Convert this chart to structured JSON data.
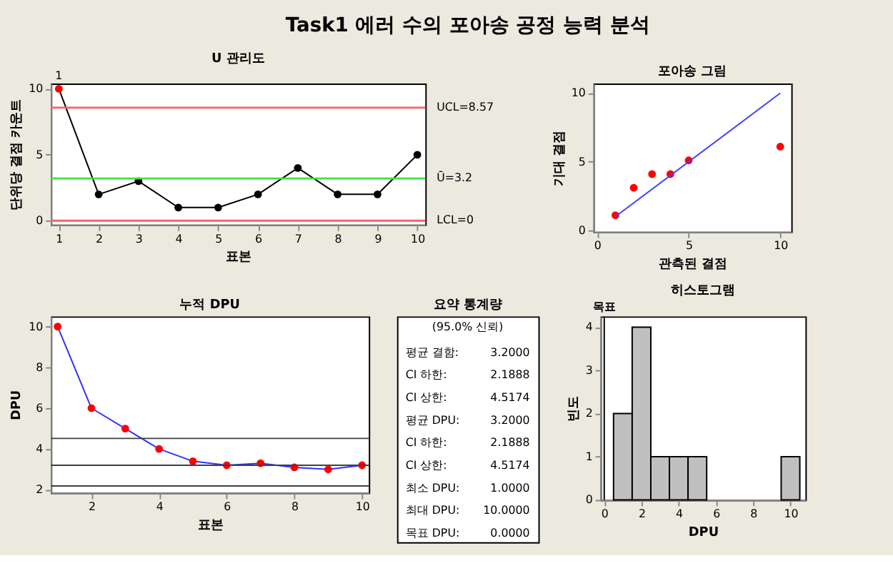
{
  "chart_data": [
    {
      "type": "other",
      "title": "Task1 에러 수의 포아송 공정 능력 분석"
    },
    {
      "type": "line",
      "title": "U 관리도",
      "xlabel": "표본",
      "ylabel": "단위당 결점 카운트",
      "x": [
        1,
        2,
        3,
        4,
        5,
        6,
        7,
        8,
        9,
        10
      ],
      "xlim": [
        0.8,
        10.2
      ],
      "xticks": [
        1,
        2,
        3,
        4,
        5,
        6,
        7,
        8,
        9,
        10
      ],
      "ylim": [
        -0.3,
        10.4
      ],
      "yticks": [
        0,
        5,
        10
      ],
      "marker": "circle",
      "grid": false,
      "series": [
        {
          "color": "#000000",
          "values": [
            10,
            2,
            3,
            1,
            1,
            2,
            4,
            2,
            2,
            5
          ],
          "colors": [
            "#ff0000",
            "#000000",
            "#000000",
            "#000000",
            "#000000",
            "#000000",
            "#000000",
            "#000000",
            "#000000",
            "#000000"
          ]
        }
      ],
      "ref_lines": [
        {
          "axis": "y",
          "value": 8.57,
          "label": "UCL=8.57",
          "color": "#ff6060"
        },
        {
          "axis": "y",
          "value": 3.2,
          "label": "Ū=3.2",
          "color": "#40e040"
        },
        {
          "axis": "y",
          "value": 0,
          "label": "LCL=0",
          "color": "#ff6060"
        }
      ],
      "annotations": [
        {
          "text": "1",
          "x": 1,
          "y": 10
        }
      ]
    },
    {
      "type": "scatter",
      "title": "포아송 그림",
      "xlabel": "관측된 결점",
      "ylabel": "기대 결점",
      "xlim": [
        -0.2,
        10.6
      ],
      "xticks": [
        0,
        5,
        10
      ],
      "ylim": [
        -0.1,
        10.7
      ],
      "yticks": [
        0,
        5,
        10
      ],
      "marker": "circle",
      "grid": false,
      "series": [
        {
          "x": [
            1,
            2,
            3,
            4,
            5,
            10
          ],
          "values": [
            1.1,
            3.1,
            4.1,
            4.1,
            5.1,
            6.1
          ],
          "color": "#ff0000"
        },
        {
          "type": "line",
          "marker": "none",
          "x": [
            1,
            10
          ],
          "values": [
            1,
            10
          ],
          "color": "#4040ff"
        }
      ]
    },
    {
      "type": "line",
      "title": "누적 DPU",
      "xlabel": "표본",
      "ylabel": "DPU",
      "x": [
        1,
        2,
        3,
        4,
        5,
        6,
        7,
        8,
        9,
        10
      ],
      "xlim": [
        0.8,
        10.2
      ],
      "xticks": [
        2,
        4,
        6,
        8,
        10
      ],
      "ylim": [
        1.85,
        10.5
      ],
      "yticks": [
        2,
        4,
        6,
        8,
        10
      ],
      "marker": "circle",
      "grid": false,
      "series": [
        {
          "color": "#3030ff",
          "values": [
            10,
            6,
            5,
            4,
            3.4,
            3.2,
            3.3,
            3.1,
            3.0,
            3.2
          ],
          "colors": [
            "#ff0000",
            "#ff0000",
            "#ff0000",
            "#ff0000",
            "#ff0000",
            "#ff0000",
            "#ff0000",
            "#ff0000",
            "#ff0000",
            "#ff0000"
          ]
        }
      ],
      "ref_lines": [
        {
          "axis": "y",
          "value": 4.5174,
          "color": "#404040"
        },
        {
          "axis": "y",
          "value": 3.2,
          "color": "#404040"
        },
        {
          "axis": "y",
          "value": 2.1888,
          "color": "#404040"
        }
      ]
    },
    {
      "type": "other",
      "title": "요약 통계량",
      "annotations": [
        "(95.0% 신뢰)",
        "평균 결함: 3.2000",
        "CI 하한: 2.1888",
        "CI 상한: 4.5174",
        "평균 DPU: 3.2000",
        "CI 하한: 2.1888",
        "CI 상한: 4.5174",
        "최소 DPU: 1.0000",
        "최대 DPU: 10.0000",
        "목표 DPU: 0.0000"
      ]
    },
    {
      "type": "histogram",
      "title": "히스토그램",
      "xlabel": "DPU",
      "ylabel": "빈도",
      "bins": [
        0.5,
        1.5,
        2.5,
        3.5,
        4.5,
        5.5,
        6.5,
        7.5,
        8.5,
        9.5,
        10.5
      ],
      "values": [
        2,
        4,
        1,
        1,
        1,
        0,
        0,
        0,
        0,
        1
      ],
      "color": "#c0c0c0",
      "xlim": [
        -0.2,
        10.8
      ],
      "xticks": [
        0,
        2,
        4,
        6,
        8,
        10
      ],
      "ylim": [
        0,
        4.25
      ],
      "yticks": [
        0,
        1,
        2,
        3,
        4
      ],
      "grid": false,
      "ref_lines": [
        {
          "axis": "x",
          "value": 0,
          "label": "목표",
          "color": "#000000"
        }
      ]
    }
  ]
}
